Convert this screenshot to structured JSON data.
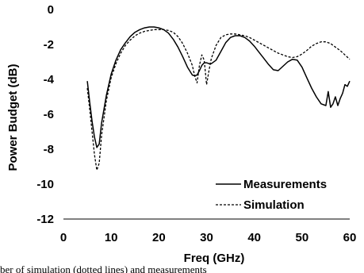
{
  "chart_data": {
    "type": "line",
    "xlabel": "Freq (GHz)",
    "ylabel": "Power Budget (dB)",
    "xlim": [
      0,
      60
    ],
    "ylim": [
      -12,
      0
    ],
    "xticks": [
      "0",
      "10",
      "20",
      "30",
      "40",
      "50",
      "60"
    ],
    "yticks": [
      "0",
      "-2",
      "-4",
      "-6",
      "-8",
      "-10",
      "-12"
    ],
    "grid": false,
    "legend_position": "bottom-right",
    "series": [
      {
        "name": "Measurements",
        "style": "solid",
        "x": [
          5,
          5.5,
          6,
          6.5,
          7,
          7.5,
          8,
          9,
          10,
          11,
          12,
          13,
          14,
          15,
          16,
          17,
          18,
          19,
          20,
          21,
          22,
          23,
          24,
          25,
          26,
          27,
          27.5,
          28,
          28.5,
          29,
          29.5,
          30,
          30.5,
          31,
          32,
          33,
          34,
          35,
          36,
          37,
          38,
          39,
          40,
          41,
          42,
          43,
          44,
          45,
          46,
          47,
          48,
          49,
          50,
          51,
          52,
          53,
          54,
          55,
          55.5,
          56,
          56.5,
          57,
          57.5,
          58,
          58.5,
          59,
          59.5,
          60
        ],
        "y": [
          -4.1,
          -5.3,
          -6.4,
          -7.3,
          -7.9,
          -7.7,
          -6.5,
          -4.9,
          -3.7,
          -2.9,
          -2.3,
          -1.9,
          -1.55,
          -1.3,
          -1.15,
          -1.05,
          -1.0,
          -1.0,
          -1.05,
          -1.15,
          -1.35,
          -1.7,
          -2.15,
          -2.7,
          -3.3,
          -3.75,
          -3.8,
          -3.75,
          -3.5,
          -3.2,
          -3.05,
          -3.05,
          -3.1,
          -3.1,
          -2.9,
          -2.4,
          -1.9,
          -1.6,
          -1.5,
          -1.5,
          -1.6,
          -1.8,
          -2.1,
          -2.45,
          -2.8,
          -3.15,
          -3.45,
          -3.5,
          -3.25,
          -3.0,
          -2.85,
          -2.9,
          -3.3,
          -3.9,
          -4.5,
          -5.0,
          -5.4,
          -5.5,
          -4.7,
          -5.6,
          -5.4,
          -5.0,
          -5.5,
          -5.1,
          -4.8,
          -4.3,
          -4.4,
          -4.1
        ]
      },
      {
        "name": "Simulation",
        "style": "dashed",
        "x": [
          5,
          5.5,
          6,
          6.5,
          7,
          7.5,
          8,
          9,
          10,
          11,
          12,
          13,
          14,
          15,
          16,
          17,
          18,
          19,
          20,
          21,
          22,
          23,
          24,
          25,
          26,
          27,
          27.5,
          28,
          28.5,
          29,
          29.5,
          30,
          30.5,
          31,
          32,
          33,
          34,
          35,
          36,
          37,
          38,
          39,
          40,
          41,
          42,
          43,
          44,
          45,
          46,
          47,
          48,
          49,
          50,
          51,
          52,
          53,
          54,
          55,
          56,
          57,
          58,
          59,
          60
        ],
        "y": [
          -4.5,
          -5.7,
          -7.0,
          -8.3,
          -9.2,
          -8.8,
          -7.2,
          -5.2,
          -3.9,
          -3.1,
          -2.5,
          -2.05,
          -1.75,
          -1.5,
          -1.35,
          -1.25,
          -1.2,
          -1.15,
          -1.15,
          -1.15,
          -1.2,
          -1.3,
          -1.55,
          -1.95,
          -2.5,
          -3.2,
          -3.8,
          -4.2,
          -3.2,
          -2.6,
          -2.9,
          -4.3,
          -3.5,
          -2.8,
          -2.05,
          -1.6,
          -1.45,
          -1.4,
          -1.4,
          -1.45,
          -1.5,
          -1.6,
          -1.75,
          -1.9,
          -2.05,
          -2.2,
          -2.35,
          -2.5,
          -2.6,
          -2.7,
          -2.75,
          -2.7,
          -2.55,
          -2.35,
          -2.1,
          -1.95,
          -1.85,
          -1.85,
          -1.95,
          -2.15,
          -2.35,
          -2.6,
          -2.85
        ]
      }
    ]
  },
  "caption": "ber of simulation (dotted lines) and measurements"
}
